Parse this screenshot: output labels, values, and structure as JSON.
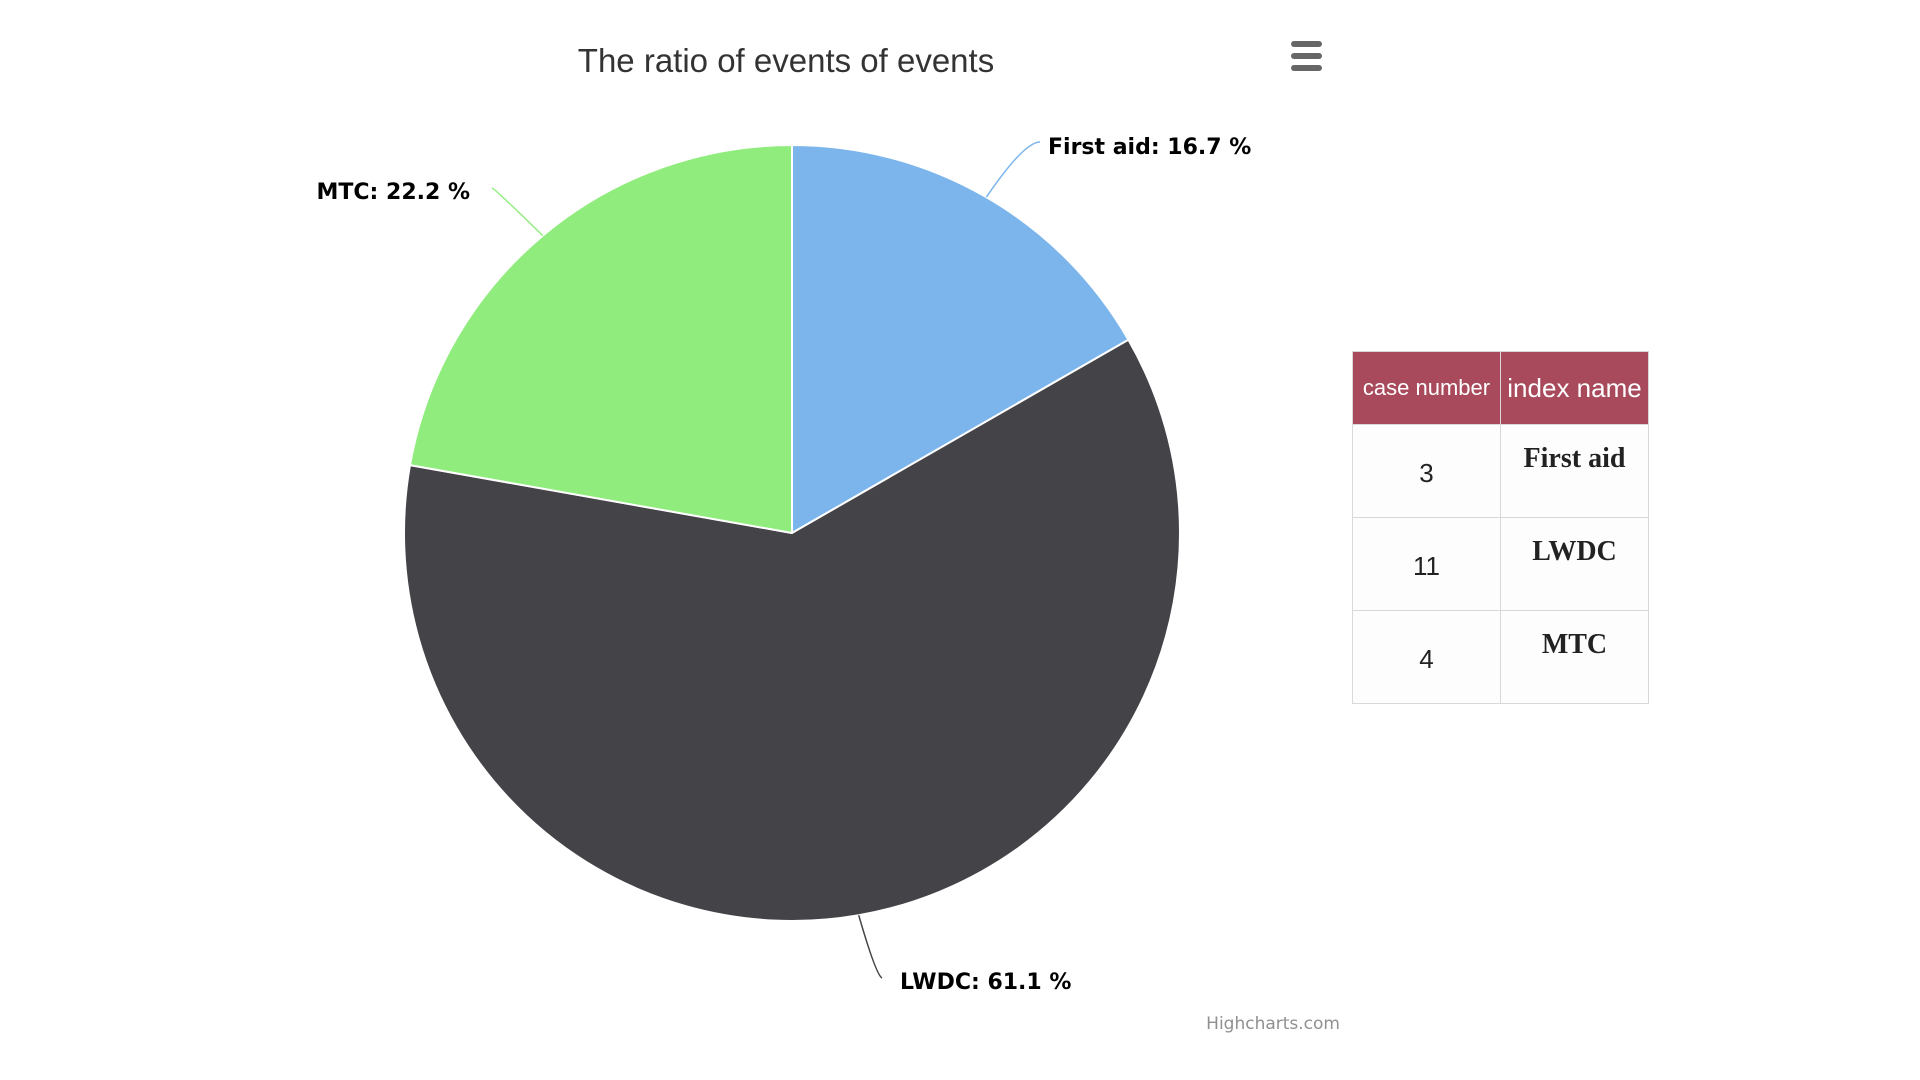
{
  "chart_data": {
    "type": "pie",
    "title": "The ratio of events of events",
    "slices": [
      {
        "name": "First aid",
        "value": 16.7,
        "label": "First aid: 16.7 %",
        "color": "#7cb5ec"
      },
      {
        "name": "LWDC",
        "value": 61.1,
        "label": "LWDC: 61.1 %",
        "color": "#434348"
      },
      {
        "name": "MTC",
        "value": 22.2,
        "label": "MTC: 22.2 %",
        "color": "#90ed7d"
      }
    ],
    "credits": "Highcharts.com"
  },
  "table": {
    "headers": [
      "case number",
      "index name"
    ],
    "rows": [
      {
        "case_number": "3",
        "index_name": "First aid"
      },
      {
        "case_number": "11",
        "index_name": "LWDC"
      },
      {
        "case_number": "4",
        "index_name": "MTC"
      }
    ],
    "header_color": "#a84a5c"
  },
  "menu": {
    "icon": "hamburger-menu-icon"
  }
}
